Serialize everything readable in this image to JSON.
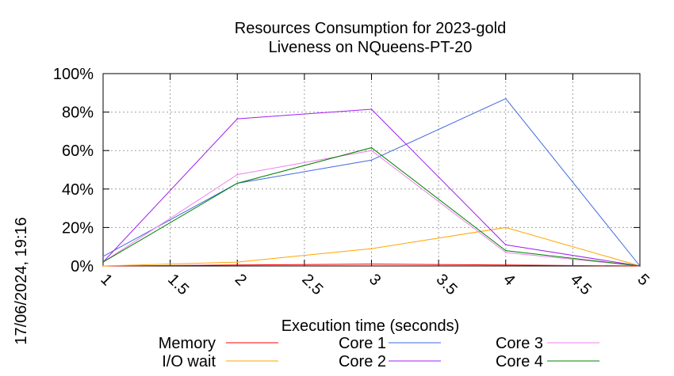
{
  "chart_data": {
    "type": "line",
    "title": "Resources Consumption for 2023-gold",
    "subtitle": "Liveness on NQueens-PT-20",
    "xlabel": "Execution time (seconds)",
    "ylabel": "",
    "timestamp": "17/06/2024, 19:16",
    "xlim": [
      1,
      5
    ],
    "ylim": [
      0,
      100
    ],
    "x_ticks": [
      "1",
      "1.5",
      "2",
      "2.5",
      "3",
      "3.5",
      "4",
      "4.5",
      "5"
    ],
    "y_ticks": [
      "0%",
      "20%",
      "40%",
      "60%",
      "80%",
      "100%"
    ],
    "grid": true,
    "legend_position": "bottom",
    "x": [
      1,
      2,
      3,
      4,
      5
    ],
    "series": [
      {
        "name": "Memory",
        "color": "#ff0000",
        "values": [
          0,
          0.5,
          1,
          0.5,
          0
        ]
      },
      {
        "name": "I/O wait",
        "color": "#ffa500",
        "values": [
          0,
          2,
          9,
          20,
          0
        ]
      },
      {
        "name": "Core 1",
        "color": "#4169e1",
        "values": [
          5,
          43,
          55,
          87,
          0
        ]
      },
      {
        "name": "Core 2",
        "color": "#a020f0",
        "values": [
          2,
          76.5,
          81.5,
          11,
          0
        ]
      },
      {
        "name": "Core 3",
        "color": "#ee82ee",
        "values": [
          2,
          47.5,
          60,
          7,
          0
        ]
      },
      {
        "name": "Core 4",
        "color": "#008000",
        "values": [
          2,
          43,
          61.5,
          8,
          0
        ]
      }
    ]
  }
}
